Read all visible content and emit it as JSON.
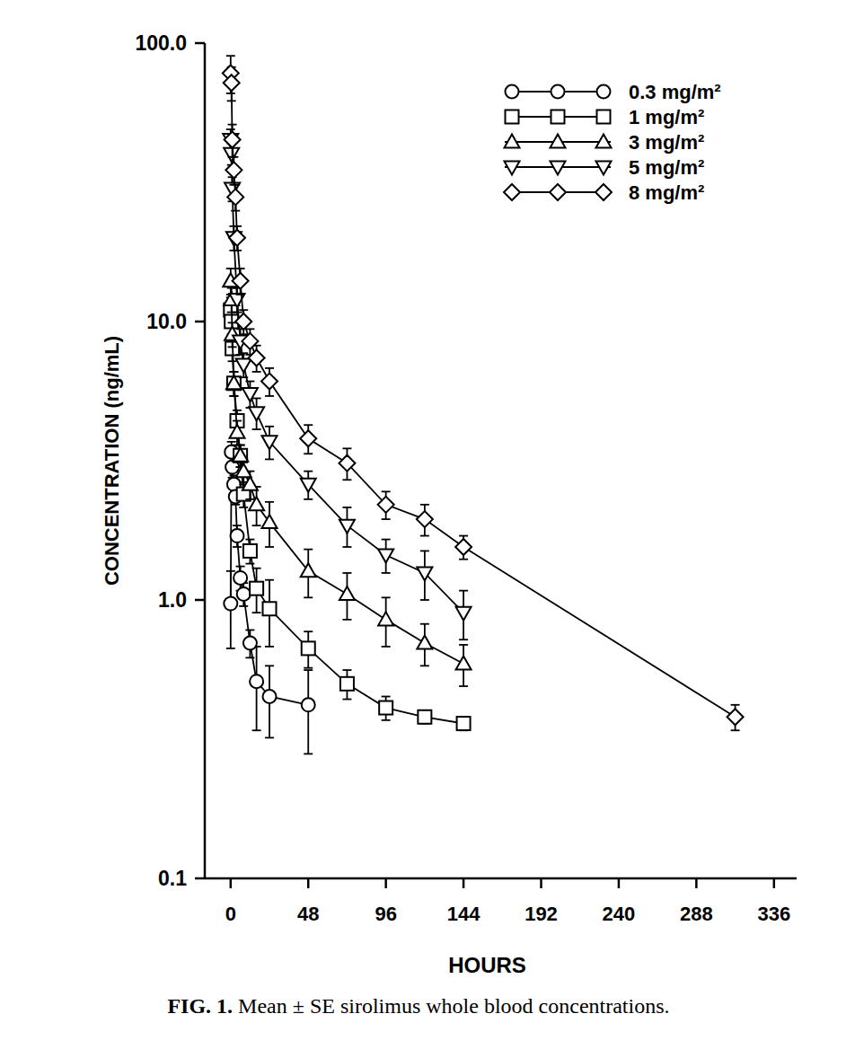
{
  "chart_data": {
    "type": "line",
    "title": "FIG. 1. Mean ± SE sirolimus whole blood concentrations.",
    "x_label": "HOURS",
    "y_label": "CONCENTRATION (ng/mL)",
    "log": "y",
    "grid": false,
    "legend": "upper right",
    "xlim": [
      -16,
      350
    ],
    "xticks": [
      0,
      48,
      96,
      144,
      192,
      240,
      288,
      336
    ],
    "ylim": [
      0.1,
      100
    ],
    "yticks": [
      {
        "value": 0.1,
        "label": "0.1"
      },
      {
        "value": 1,
        "label": "1.0"
      },
      {
        "value": 10,
        "label": "10.0"
      },
      {
        "value": 100,
        "label": "100.0"
      }
    ],
    "series": [
      {
        "name": "0.3 mg/m²",
        "color": "#000000",
        "marker": "circle",
        "line_style": "solid",
        "x": [
          0,
          0.5,
          1,
          2,
          3,
          4,
          6,
          8,
          12,
          16,
          24,
          48
        ],
        "values": [
          0.97,
          3.4,
          3.0,
          2.6,
          2.35,
          1.7,
          1.2,
          1.05,
          0.7,
          0.51,
          0.45,
          0.42
        ],
        "errors": [
          0.3,
          0.3,
          0.25,
          0.2,
          0.15,
          0.15,
          0.12,
          0.1,
          0.08,
          0.17,
          0.13,
          0.14
        ]
      },
      {
        "name": "1 mg/m²",
        "color": "#000000",
        "marker": "square",
        "line_style": "solid",
        "x": [
          0,
          0.5,
          1,
          2,
          4,
          6,
          8,
          12,
          16,
          24,
          48,
          72,
          96,
          120,
          144
        ],
        "values": [
          11,
          10,
          8,
          6,
          4.4,
          3.3,
          2.4,
          1.5,
          1.1,
          0.93,
          0.67,
          0.5,
          0.41,
          0.38,
          0.36
        ],
        "errors": [
          1.2,
          1.0,
          0.8,
          0.6,
          0.4,
          0.3,
          0.25,
          0.15,
          0.2,
          0.25,
          0.1,
          0.06,
          0.04,
          0.02,
          0.02
        ]
      },
      {
        "name": "3 mg/m²",
        "color": "#000000",
        "marker": "triangle-up",
        "line_style": "solid",
        "x": [
          0,
          0.5,
          1,
          2,
          4,
          6,
          8,
          12,
          16,
          24,
          48,
          72,
          96,
          120,
          144
        ],
        "values": [
          14,
          12,
          9,
          6,
          4,
          3.3,
          2.9,
          2.6,
          2.2,
          1.9,
          1.27,
          1.05,
          0.85,
          0.7,
          0.59
        ],
        "errors": [
          1.5,
          1.2,
          0.9,
          0.6,
          0.4,
          0.3,
          0.3,
          0.3,
          0.35,
          0.35,
          0.25,
          0.2,
          0.17,
          0.12,
          0.1
        ]
      },
      {
        "name": "5 mg/m²",
        "color": "#000000",
        "marker": "triangle-down",
        "line_style": "solid",
        "x": [
          0,
          0.5,
          1,
          2,
          4,
          6,
          8,
          12,
          16,
          24,
          48,
          72,
          96,
          120,
          144
        ],
        "values": [
          45,
          40,
          30,
          20,
          12,
          8.5,
          7,
          5.5,
          4.7,
          3.7,
          2.6,
          1.85,
          1.45,
          1.25,
          0.9
        ],
        "errors": [
          4,
          3.5,
          3,
          2,
          1.2,
          0.9,
          0.7,
          0.6,
          0.6,
          0.5,
          0.3,
          0.3,
          0.2,
          0.25,
          0.18
        ]
      },
      {
        "name": "8 mg/m²",
        "color": "#000000",
        "marker": "diamond",
        "line_style": "solid",
        "x": [
          0,
          0.5,
          1,
          2,
          3,
          4,
          6,
          8,
          12,
          16,
          24,
          48,
          72,
          96,
          120,
          144,
          312
        ],
        "values": [
          78,
          72,
          45,
          35,
          28,
          20,
          14,
          10,
          8.5,
          7.4,
          6.1,
          3.8,
          3.1,
          2.2,
          1.95,
          1.55,
          0.38
        ],
        "errors": [
          12,
          10,
          6,
          4,
          3,
          2,
          1.5,
          1,
          0.9,
          0.8,
          0.7,
          0.45,
          0.4,
          0.25,
          0.25,
          0.15,
          0.04
        ]
      }
    ]
  }
}
